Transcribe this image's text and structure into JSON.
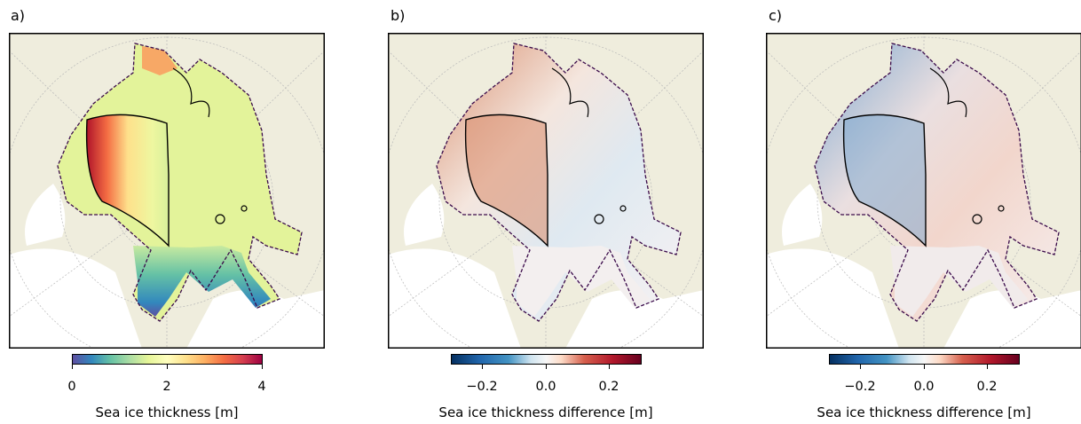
{
  "panels": [
    {
      "letter": "a)"
    },
    {
      "letter": "b)"
    },
    {
      "letter": "c)"
    }
  ],
  "colorbars": [
    {
      "ticks": [
        "0",
        "2",
        "4"
      ],
      "label": "Sea ice thickness [m]",
      "colormap": "Spectral_r",
      "range": [
        0,
        4
      ]
    },
    {
      "ticks": [
        "−0.2",
        "0.0",
        "0.2"
      ],
      "label": "Sea ice thickness difference [m]",
      "colormap": "RdBu_r",
      "range": [
        -0.3,
        0.3
      ]
    },
    {
      "ticks": [
        "−0.2",
        "0.0",
        "0.2"
      ],
      "label": "Sea ice thickness difference [m]",
      "colormap": "RdBu_r",
      "range": [
        -0.3,
        0.3
      ]
    }
  ],
  "colors": {
    "land": "#efeddd",
    "ocean": "#ffffff",
    "contour_solid": "#000000",
    "contour_dashed": "#3a0a4a"
  }
}
